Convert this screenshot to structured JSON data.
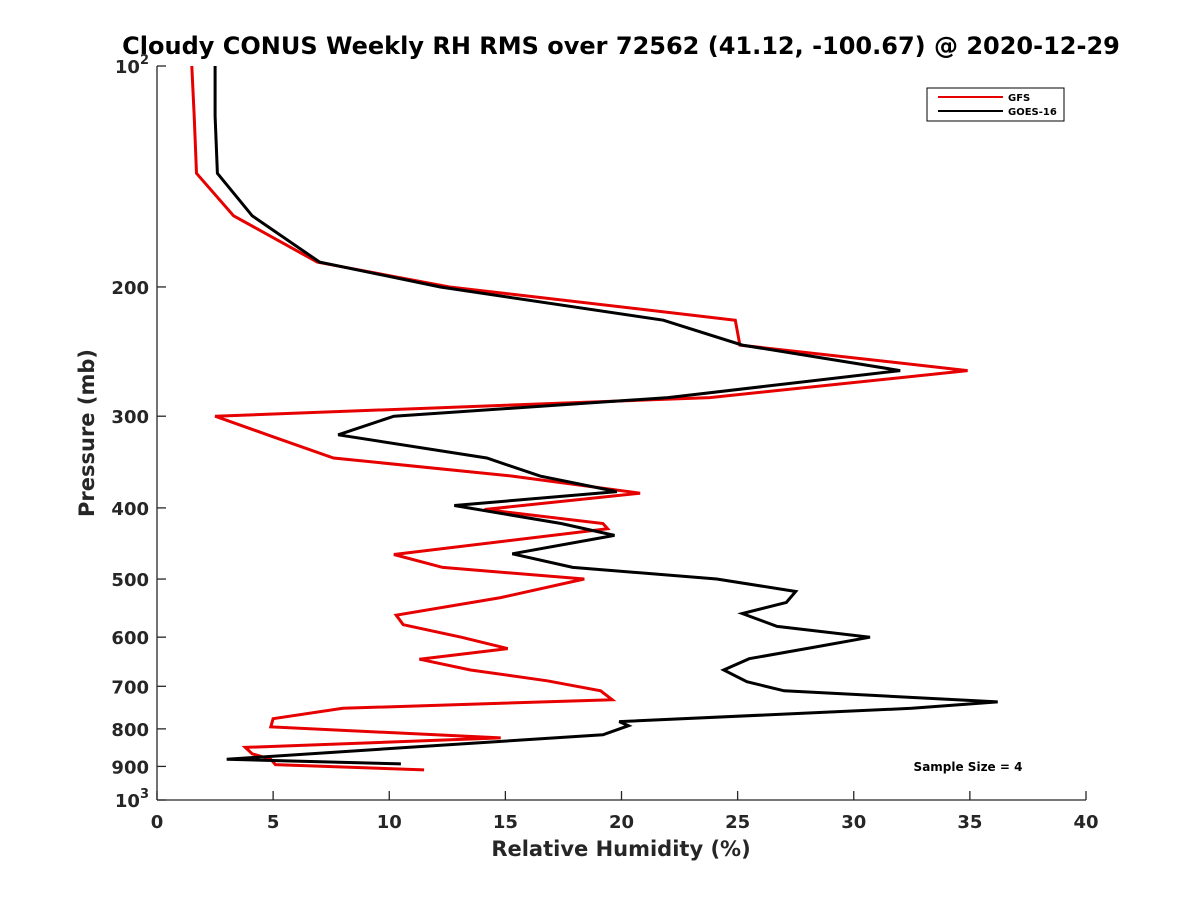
{
  "chart_data": {
    "type": "line",
    "title": "Cloudy CONUS Weekly RH RMS over 72562 (41.12, -100.67) @ 2020-12-29",
    "xlabel": "Relative Humidity (%)",
    "ylabel": "Pressure (mb)",
    "xlim": [
      0,
      40
    ],
    "ylim": [
      100,
      1000
    ],
    "y_scale": "log",
    "y_reversed": true,
    "grid": false,
    "legend_position": "top-right",
    "x_ticks": [
      0,
      5,
      10,
      15,
      20,
      25,
      30,
      35,
      40
    ],
    "y_ticks": [
      {
        "value": 100,
        "base": "10",
        "exp": "2"
      },
      {
        "value": 200,
        "label": "200"
      },
      {
        "value": 300,
        "label": "300"
      },
      {
        "value": 400,
        "label": "400"
      },
      {
        "value": 500,
        "label": "500"
      },
      {
        "value": 600,
        "label": "600"
      },
      {
        "value": 700,
        "label": "700"
      },
      {
        "value": 800,
        "label": "800"
      },
      {
        "value": 900,
        "label": "900"
      },
      {
        "value": 1000,
        "base": "10",
        "exp": "3"
      }
    ],
    "series": [
      {
        "name": "GFS",
        "color": "#e60000",
        "x": [
          1.5,
          1.6,
          1.7,
          3.3,
          6.9,
          12.6,
          24.9,
          25.1,
          34.9,
          23.8,
          2.5,
          5,
          7.6,
          15.3,
          20.8,
          14.1,
          19.2,
          19.4,
          10.2,
          12.3,
          18.4,
          14.8,
          10.3,
          10.6,
          13.1,
          15.1,
          11.3,
          13.5,
          16.8,
          19.1,
          19.6,
          8,
          5,
          4.9,
          14.8,
          3.8,
          4.1,
          4.9,
          5.1,
          11.5
        ],
        "y": [
          100,
          117,
          140,
          160,
          185,
          200,
          222,
          240,
          260,
          283,
          300,
          320,
          342,
          362,
          382,
          402,
          420,
          427,
          463,
          482,
          500,
          530,
          560,
          577,
          600,
          622,
          643,
          665,
          688,
          710,
          730,
          750,
          775,
          795,
          823,
          848,
          865,
          880,
          895,
          910
        ]
      },
      {
        "name": "GOES-16",
        "color": "#000000",
        "x": [
          2.5,
          2.5,
          2.6,
          4.1,
          7,
          12.2,
          21.8,
          25.2,
          32,
          22,
          10.2,
          7.8,
          14.2,
          16.5,
          19.8,
          12.8,
          17.4,
          19.7,
          15.3,
          17.9,
          24.1,
          27.5,
          27.1,
          25.2,
          26.7,
          30.7,
          28.2,
          25.5,
          24.4,
          25.4,
          27,
          36.2,
          32.5,
          19.9,
          20.3,
          19.2,
          10.8,
          3,
          10.5
        ],
        "y": [
          100,
          117,
          140,
          160,
          185,
          200,
          222,
          240,
          260,
          283,
          300,
          318,
          342,
          362,
          380,
          397,
          420,
          436,
          462,
          482,
          500,
          520,
          538,
          557,
          580,
          600,
          620,
          642,
          665,
          690,
          710,
          735,
          750,
          782,
          792,
          815,
          848,
          880,
          893
        ]
      }
    ],
    "annotation": "Sample Size = 4"
  }
}
